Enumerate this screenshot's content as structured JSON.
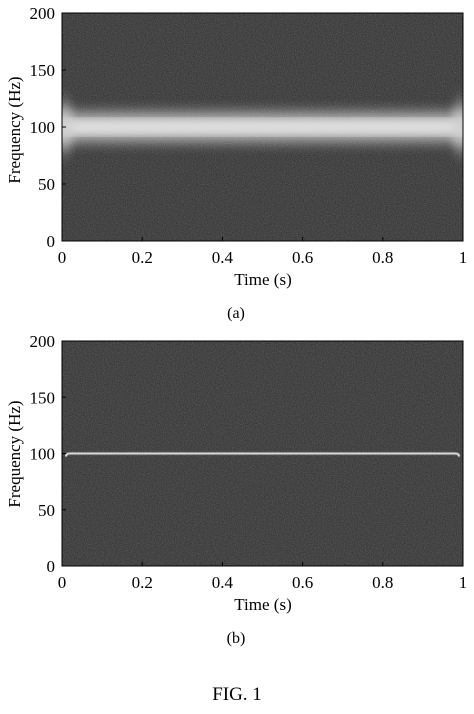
{
  "figure_label": "FIG. 1",
  "chart_data": [
    {
      "type": "heatmap",
      "caption": "(a)",
      "xlabel": "Time (s)",
      "ylabel": "Frequency (Hz)",
      "xlim": [
        0,
        1
      ],
      "ylim": [
        0,
        200
      ],
      "xticks": [
        0,
        0.2,
        0.4,
        0.6,
        0.8,
        1
      ],
      "xtick_labels": [
        "0",
        "0.2",
        "0.4",
        "0.6",
        "0.8",
        "1"
      ],
      "yticks": [
        0,
        50,
        100,
        150,
        200
      ],
      "ytick_labels": [
        "0",
        "50",
        "100",
        "150",
        "200"
      ],
      "colormap": "gray",
      "background_color": "#2c2c2c",
      "ridge": {
        "frequency": 100,
        "t_start": 0,
        "t_end": 1,
        "spread_hz": 12,
        "edge_flare": true
      }
    },
    {
      "type": "heatmap",
      "caption": "(b)",
      "xlabel": "Time (s)",
      "ylabel": "Frequency (Hz)",
      "xlim": [
        0,
        1
      ],
      "ylim": [
        0,
        200
      ],
      "xticks": [
        0,
        0.2,
        0.4,
        0.6,
        0.8,
        1
      ],
      "xtick_labels": [
        "0",
        "0.2",
        "0.4",
        "0.6",
        "0.8",
        "1"
      ],
      "yticks": [
        0,
        50,
        100,
        150,
        200
      ],
      "ytick_labels": [
        "0",
        "50",
        "100",
        "150",
        "200"
      ],
      "colormap": "gray",
      "background_color": "#2c2c2c",
      "ridge": {
        "frequency": 100,
        "t_start": 0.01,
        "t_end": 0.99,
        "spread_hz": 1,
        "edge_flare": false
      }
    }
  ]
}
